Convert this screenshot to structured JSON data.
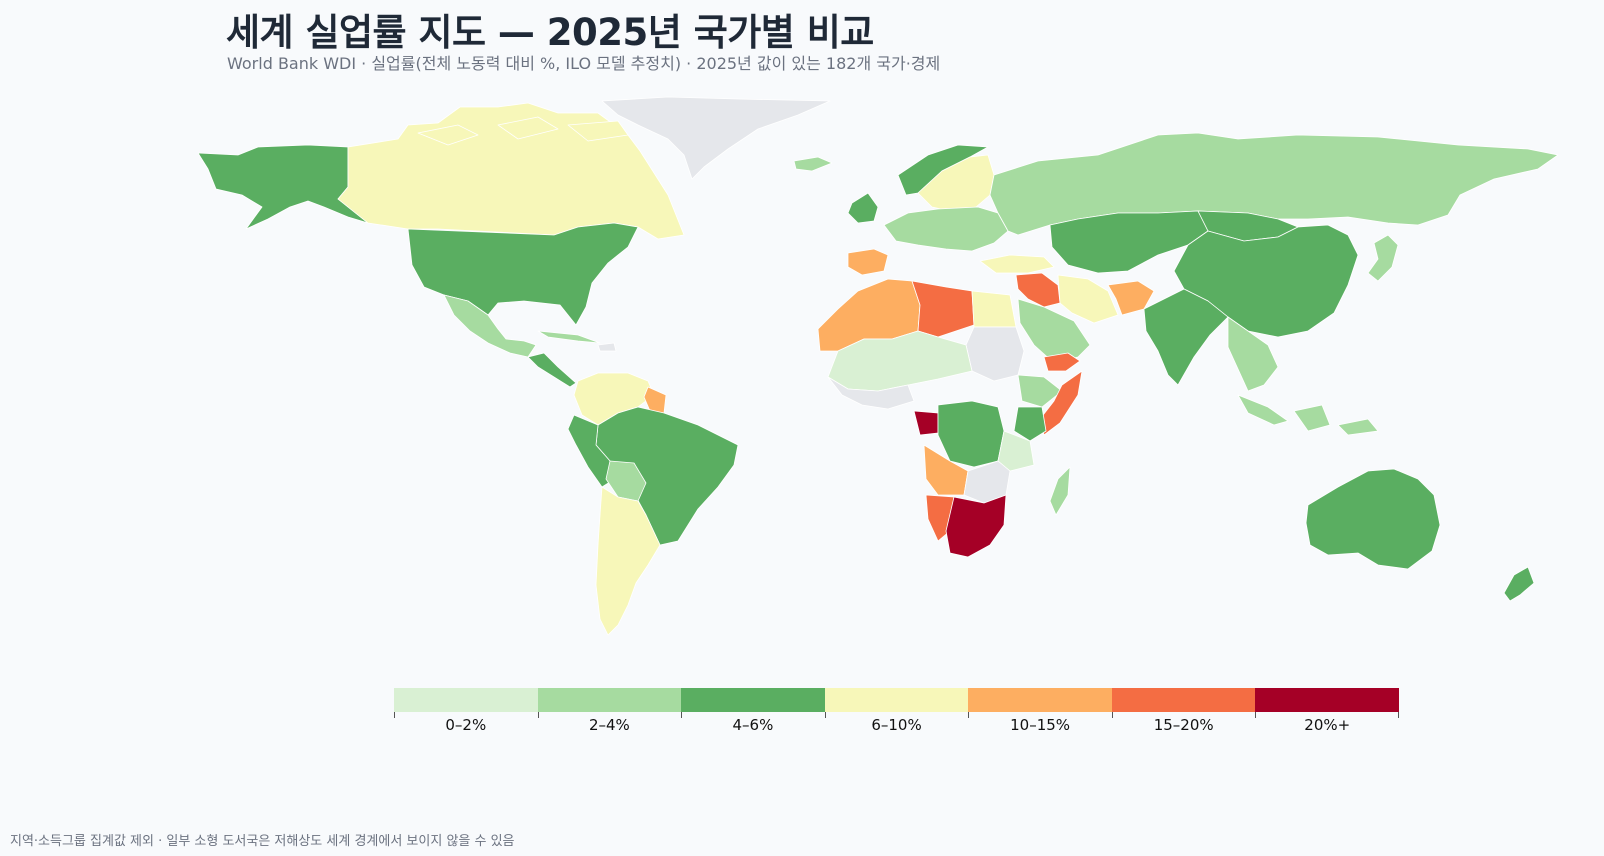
{
  "header": {
    "title": "세계 실업률 지도 — 2025년 국가별 비교",
    "subtitle": "World Bank WDI · 실업률(전체 노동력 대비 %, ILO 모델 추정치) · 2025년 값이 있는 182개 국가·경제"
  },
  "legend": {
    "bins": [
      {
        "label": "0–2%",
        "color": "#d9f0d3"
      },
      {
        "label": "2–4%",
        "color": "#a6dba0"
      },
      {
        "label": "4–6%",
        "color": "#5aae61"
      },
      {
        "label": "6–10%",
        "color": "#f7f7b9"
      },
      {
        "label": "10–15%",
        "color": "#fdae61"
      },
      {
        "label": "15–20%",
        "color": "#f46d43"
      },
      {
        "label": "20%+",
        "color": "#a50026"
      }
    ],
    "no_data_color": "#e5e7eb"
  },
  "regions": [
    {
      "name": "Alaska",
      "bin": "4–6%"
    },
    {
      "name": "Canada",
      "bin": "6–10%"
    },
    {
      "name": "Greenland",
      "bin": "no-data"
    },
    {
      "name": "United States",
      "bin": "4–6%"
    },
    {
      "name": "Mexico",
      "bin": "2–4%"
    },
    {
      "name": "Central America",
      "bin": "4–6%"
    },
    {
      "name": "Cuba",
      "bin": "2–4%"
    },
    {
      "name": "Colombia / Venezuela",
      "bin": "6–10%"
    },
    {
      "name": "Suriname",
      "bin": "10–15%"
    },
    {
      "name": "Brazil",
      "bin": "4–6%"
    },
    {
      "name": "Peru",
      "bin": "4–6%"
    },
    {
      "name": "Bolivia",
      "bin": "2–4%"
    },
    {
      "name": "Argentina / Chile",
      "bin": "6–10%"
    },
    {
      "name": "Iceland",
      "bin": "2–4%"
    },
    {
      "name": "Scandinavia",
      "bin": "4–6%"
    },
    {
      "name": "Sweden / Finland",
      "bin": "6–10%"
    },
    {
      "name": "United Kingdom",
      "bin": "4–6%"
    },
    {
      "name": "Russia",
      "bin": "2–4%"
    },
    {
      "name": "Central Europe",
      "bin": "2–4%"
    },
    {
      "name": "Spain",
      "bin": "10–15%"
    },
    {
      "name": "Turkey",
      "bin": "6–10%"
    },
    {
      "name": "Algeria / Morocco",
      "bin": "10–15%"
    },
    {
      "name": "Libya",
      "bin": "15–20%"
    },
    {
      "name": "Egypt",
      "bin": "6–10%"
    },
    {
      "name": "Sudan",
      "bin": "no-data"
    },
    {
      "name": "Sahel",
      "bin": "0–2%"
    },
    {
      "name": "Saudi Arabia",
      "bin": "2–4%"
    },
    {
      "name": "Iraq / Syria",
      "bin": "15–20%"
    },
    {
      "name": "Iran",
      "bin": "6–10%"
    },
    {
      "name": "Yemen",
      "bin": "15–20%"
    },
    {
      "name": "Kazakhstan / Central Asia",
      "bin": "4–6%"
    },
    {
      "name": "Afghanistan",
      "bin": "10–15%"
    },
    {
      "name": "India",
      "bin": "4–6%"
    },
    {
      "name": "China",
      "bin": "4–6%"
    },
    {
      "name": "Mongolia",
      "bin": "4–6%"
    },
    {
      "name": "Southeast Asia",
      "bin": "2–4%"
    },
    {
      "name": "Indonesia",
      "bin": "2–4%"
    },
    {
      "name": "Japan",
      "bin": "2–4%"
    },
    {
      "name": "Ethiopia",
      "bin": "2–4%"
    },
    {
      "name": "Somalia",
      "bin": "15–20%"
    },
    {
      "name": "Kenya",
      "bin": "4–6%"
    },
    {
      "name": "DR Congo",
      "bin": "4–6%"
    },
    {
      "name": "Gabon",
      "bin": "20%+"
    },
    {
      "name": "Angola",
      "bin": "10–15%"
    },
    {
      "name": "Namibia",
      "bin": "15–20%"
    },
    {
      "name": "South Africa",
      "bin": "20%+"
    },
    {
      "name": "Tanzania",
      "bin": "0–2%"
    },
    {
      "name": "Madagascar",
      "bin": "2–4%"
    },
    {
      "name": "Australia",
      "bin": "4–6%"
    },
    {
      "name": "New Zealand",
      "bin": "4–6%"
    }
  ],
  "footer": "지역·소득그룹 집계값 제외 · 일부 소형 도서국은 저해상도 세계 경계에서 보이지 않을 수 있음"
}
